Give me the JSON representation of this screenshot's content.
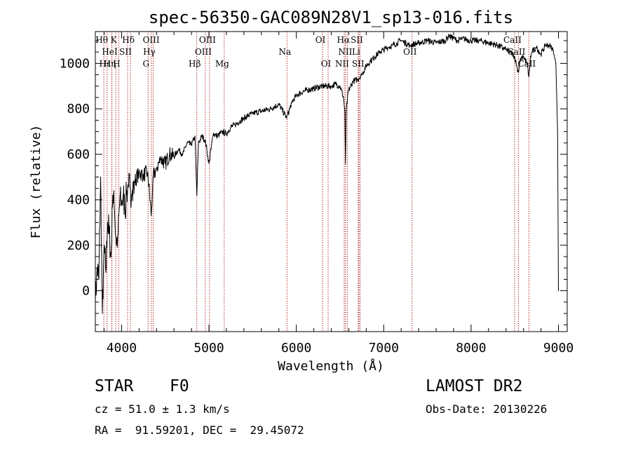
{
  "chart_data": {
    "type": "line",
    "title": "spec-56350-GAC089N28V1_sp13-016.fits",
    "xlabel": "Wavelength (Å)",
    "ylabel": "Flux (relative)",
    "xlim": [
      3700,
      9100
    ],
    "ylim": [
      -180,
      1140
    ],
    "xticks": [
      4000,
      5000,
      6000,
      7000,
      8000,
      9000
    ],
    "yticks": [
      0,
      200,
      400,
      600,
      800,
      1000
    ],
    "line_color": "#000000",
    "marker_color": "#a00000",
    "series": [
      {
        "x": [
          3700,
          3720,
          3740,
          3760,
          3780,
          3800,
          3820,
          3840,
          3860,
          3880,
          3900,
          3920,
          3940,
          3960,
          3980,
          4000,
          4020,
          4040,
          4060,
          4080,
          4100,
          4120,
          4150,
          4200,
          4250,
          4300,
          4340,
          4360,
          4400,
          4450,
          4500,
          4550,
          4600,
          4650,
          4700,
          4750,
          4800,
          4840,
          4861,
          4880,
          4920,
          4960,
          5000,
          5050,
          5100,
          5150,
          5200,
          5250,
          5300,
          5400,
          5500,
          5600,
          5700,
          5800,
          5890,
          5950,
          6000,
          6100,
          6200,
          6300,
          6400,
          6450,
          6500,
          6540,
          6555,
          6563,
          6570,
          6590,
          6620,
          6650,
          6700,
          6750,
          6800,
          6850,
          6900,
          6950,
          7000,
          7050,
          7100,
          7150,
          7200,
          7300,
          7400,
          7500,
          7600,
          7700,
          7750,
          7800,
          7850,
          7900,
          8000,
          8100,
          8200,
          8300,
          8400,
          8450,
          8500,
          8520,
          8542,
          8560,
          8600,
          8640,
          8662,
          8680,
          8700,
          8750,
          8800,
          8850,
          8900,
          8940,
          8970,
          8990,
          9000
        ],
        "y": [
          -50,
          100,
          50,
          500,
          -100,
          200,
          80,
          300,
          250,
          150,
          420,
          350,
          200,
          250,
          400,
          380,
          420,
          350,
          440,
          460,
          450,
          420,
          480,
          520,
          510,
          520,
          330,
          500,
          540,
          580,
          560,
          600,
          590,
          620,
          600,
          650,
          640,
          680,
          420,
          650,
          680,
          660,
          560,
          690,
          680,
          700,
          690,
          720,
          730,
          760,
          780,
          790,
          800,
          820,
          760,
          830,
          860,
          880,
          890,
          900,
          900,
          910,
          900,
          850,
          790,
          560,
          780,
          870,
          900,
          920,
          930,
          950,
          990,
          1010,
          1030,
          1050,
          1060,
          1070,
          1080,
          1090,
          1100,
          1080,
          1090,
          1100,
          1090,
          1100,
          1120,
          1110,
          1100,
          1110,
          1100,
          1100,
          1090,
          1080,
          1060,
          1050,
          1030,
          990,
          960,
          1010,
          1030,
          1000,
          940,
          1030,
          1050,
          1070,
          1040,
          1080,
          1080,
          1060,
          1000,
          700,
          0
        ]
      }
    ],
    "line_markers": [
      {
        "label": "Hθ",
        "x": 3797,
        "row": 0
      },
      {
        "label": "K",
        "x": 3934,
        "row": 0
      },
      {
        "label": "Hδ",
        "x": 4102,
        "row": 0
      },
      {
        "label": "OIII",
        "x": 4363,
        "row": 0
      },
      {
        "label": "OIII",
        "x": 5007,
        "row": 0
      },
      {
        "label": "OI",
        "x": 6300,
        "row": 0
      },
      {
        "label": "Hα",
        "x": 6563,
        "row": 0
      },
      {
        "label": "SII",
        "x": 6717,
        "row": 0
      },
      {
        "label": "CaII",
        "x": 8498,
        "row": 0
      },
      {
        "label": "HeI",
        "x": 3889,
        "row": 1
      },
      {
        "label": "SII",
        "x": 4069,
        "row": 1
      },
      {
        "label": "Hγ",
        "x": 4341,
        "row": 1
      },
      {
        "label": "OIII",
        "x": 4959,
        "row": 1
      },
      {
        "label": "Na",
        "x": 5893,
        "row": 1
      },
      {
        "label": "NII",
        "x": 6584,
        "row": 1
      },
      {
        "label": "Li",
        "x": 6708,
        "row": 1
      },
      {
        "label": "OII",
        "x": 7325,
        "row": 1
      },
      {
        "label": "CaII",
        "x": 8542,
        "row": 1
      },
      {
        "label": "Hε",
        "x": 3835,
        "row": 2
      },
      {
        "label": "Hη",
        "x": 3889,
        "row": 2
      },
      {
        "label": "H",
        "x": 3968,
        "row": 2
      },
      {
        "label": "G",
        "x": 4304,
        "row": 2
      },
      {
        "label": "Hβ",
        "x": 4861,
        "row": 2
      },
      {
        "label": "Mg",
        "x": 5175,
        "row": 2
      },
      {
        "label": "OI",
        "x": 6364,
        "row": 2
      },
      {
        "label": "NII",
        "x": 6548,
        "row": 2
      },
      {
        "label": "SII",
        "x": 6731,
        "row": 2
      },
      {
        "label": "CaII",
        "x": 8662,
        "row": 2
      }
    ]
  },
  "info": {
    "object_class": "STAR",
    "subclass": "F0",
    "survey": "LAMOST DR2",
    "redshift_line": "cz = 51.0 ± 1.3 km/s",
    "obs_date_line": "Obs-Date: 20130226",
    "coords_line": "RA =  91.59201, DEC =  29.45072"
  }
}
